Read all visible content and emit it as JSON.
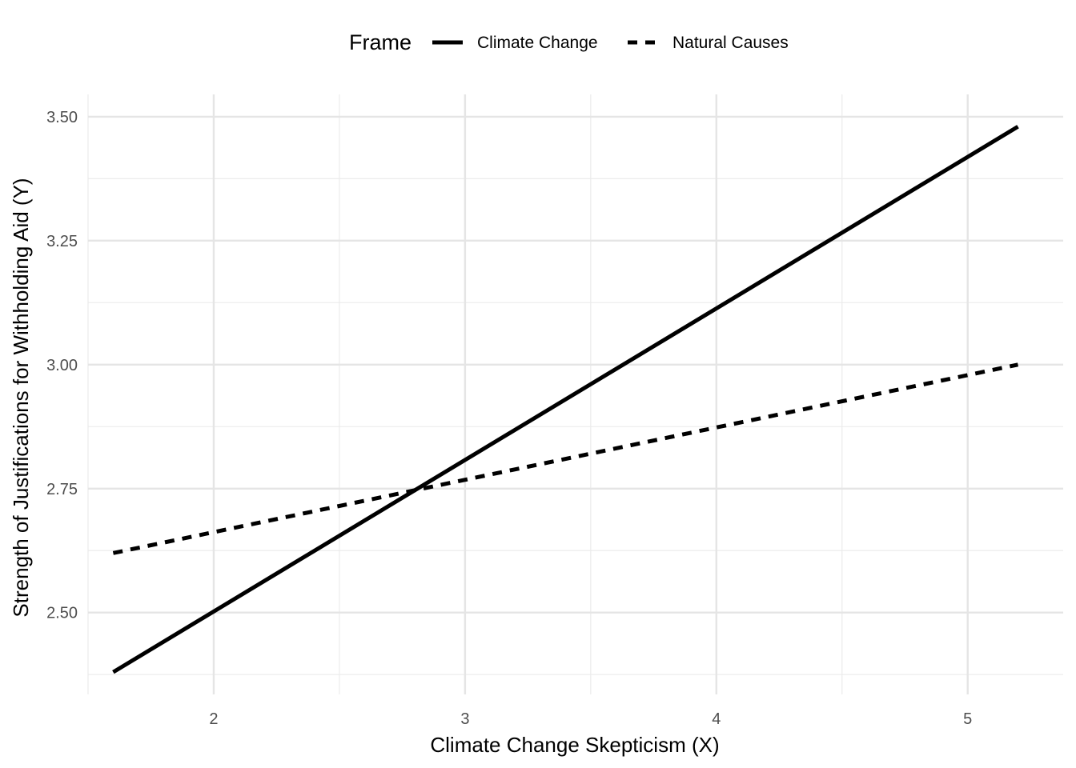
{
  "chart_data": {
    "type": "line",
    "xlabel": "Climate Change Skepticism (X)",
    "ylabel": "Strength of Justifications for Withholding Aid (Y)",
    "xlim": [
      1.5,
      5.38
    ],
    "ylim": [
      2.335,
      3.545
    ],
    "x_ticks": [
      2,
      3,
      4,
      5
    ],
    "x_tick_labels": [
      "2",
      "3",
      "4",
      "5"
    ],
    "x_minor_ticks": [
      1.5,
      2.5,
      3.5,
      4.5
    ],
    "y_ticks": [
      2.5,
      2.75,
      3.0,
      3.25,
      3.5
    ],
    "y_tick_labels": [
      "2.50",
      "2.75",
      "3.00",
      "3.25",
      "3.50"
    ],
    "y_minor_ticks": [
      2.375,
      2.625,
      2.875,
      3.125,
      3.375
    ],
    "grid": true,
    "legend": {
      "title": "Frame",
      "position": "top"
    },
    "series": [
      {
        "name": "Climate Change",
        "linetype": "solid",
        "color": "#000000",
        "x": [
          1.6,
          5.2
        ],
        "y": [
          2.38,
          3.48
        ]
      },
      {
        "name": "Natural Causes",
        "linetype": "dashed",
        "color": "#000000",
        "x": [
          1.6,
          5.2
        ],
        "y": [
          2.62,
          3.0
        ]
      }
    ]
  }
}
